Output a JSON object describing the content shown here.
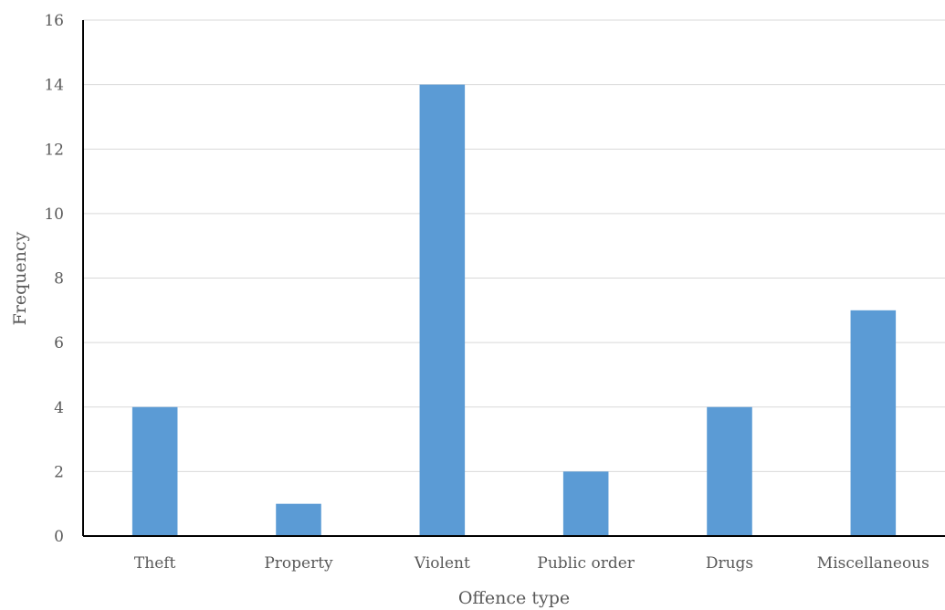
{
  "chart_data": {
    "type": "bar",
    "title": "",
    "xlabel": "Offence type",
    "ylabel": "Frequency",
    "categories": [
      "Theft",
      "Property",
      "Violent",
      "Public order",
      "Drugs",
      "Miscellaneous"
    ],
    "values": [
      4,
      1,
      14,
      2,
      4,
      7
    ],
    "ylim": [
      0,
      16
    ],
    "yticks": [
      "0",
      "2",
      "4",
      "6",
      "8",
      "10",
      "12",
      "14",
      "16"
    ],
    "grid": true,
    "legend": "none",
    "bar_color": "#5b9bd5"
  }
}
